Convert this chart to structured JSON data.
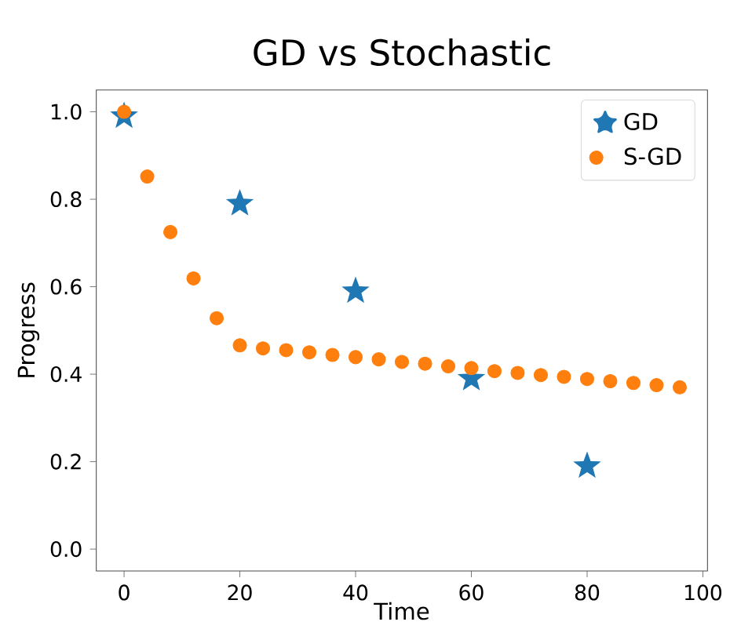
{
  "chart_data": {
    "type": "scatter",
    "title": "GD vs Stochastic",
    "xlabel": "Time",
    "ylabel": "Progress",
    "xlim": [
      -4.8,
      100.8
    ],
    "ylim": [
      -0.05,
      1.05
    ],
    "xticks": [
      0,
      20,
      40,
      60,
      80,
      100
    ],
    "yticks": [
      {
        "value": 0,
        "label": "0.0"
      },
      {
        "value": 0.2,
        "label": "0.2"
      },
      {
        "value": 0.4,
        "label": "0.4"
      },
      {
        "value": 0.6,
        "label": "0.6"
      },
      {
        "value": 0.8,
        "label": "0.8"
      },
      {
        "value": 1,
        "label": "1.0"
      }
    ],
    "legend": "top right",
    "grid": false,
    "series": [
      {
        "name": "GD",
        "color": "#1f77b4",
        "marker": "star",
        "x": [
          0,
          20,
          40,
          60,
          80
        ],
        "values": [
          0.99,
          0.79,
          0.59,
          0.39,
          0.19
        ]
      },
      {
        "name": "S-GD",
        "color": "#ff7f0e",
        "marker": "circle",
        "x": [
          0,
          4,
          8,
          12,
          16,
          20,
          24,
          28,
          32,
          36,
          40,
          44,
          48,
          52,
          56,
          60,
          64,
          68,
          72,
          76,
          80,
          84,
          88,
          92,
          96
        ],
        "values": [
          1.0,
          0.852,
          0.725,
          0.619,
          0.528,
          0.466,
          0.459,
          0.455,
          0.45,
          0.444,
          0.439,
          0.434,
          0.428,
          0.424,
          0.418,
          0.414,
          0.407,
          0.403,
          0.398,
          0.394,
          0.389,
          0.384,
          0.38,
          0.375,
          0.37
        ]
      }
    ]
  }
}
